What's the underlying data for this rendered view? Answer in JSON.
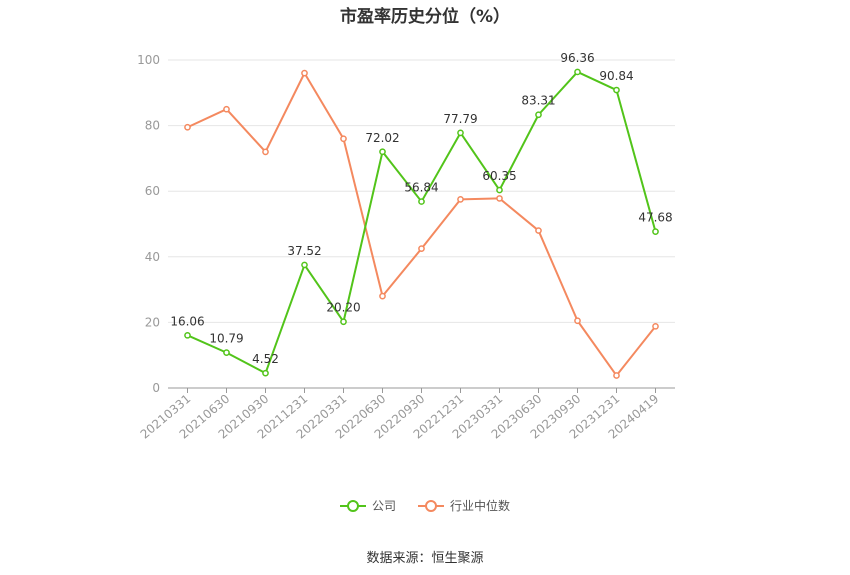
{
  "chart_data": {
    "type": "line",
    "title": "市盈率历史分位（%）",
    "categories": [
      "20210331",
      "20210630",
      "20210930",
      "20211231",
      "20220331",
      "20220630",
      "20220930",
      "20221231",
      "20230331",
      "20230630",
      "20230930",
      "20231231",
      "20240419"
    ],
    "series": [
      {
        "name": "公司",
        "color": "#52c41a",
        "values": [
          16.06,
          10.79,
          4.52,
          37.52,
          20.2,
          72.02,
          56.84,
          77.79,
          60.35,
          83.31,
          96.36,
          90.84,
          47.68
        ],
        "labels": [
          "16.06",
          "10.79",
          "4.52",
          "37.52",
          "20.20",
          "72.02",
          "56.84",
          "77.79",
          "60.35",
          "83.31",
          "96.36",
          "90.84",
          "47.68"
        ]
      },
      {
        "name": "行业中位数",
        "color": "#f4895f",
        "values": [
          79.5,
          85.0,
          72.0,
          96.0,
          76.0,
          28.0,
          42.5,
          57.5,
          57.8,
          48.0,
          20.5,
          3.8,
          18.8
        ]
      }
    ],
    "ylim": [
      0,
      100
    ],
    "yticks": [
      "0",
      "20",
      "40",
      "60",
      "80",
      "100"
    ],
    "grid": true,
    "legend_position": "bottom"
  },
  "source": "数据来源：恒生聚源"
}
